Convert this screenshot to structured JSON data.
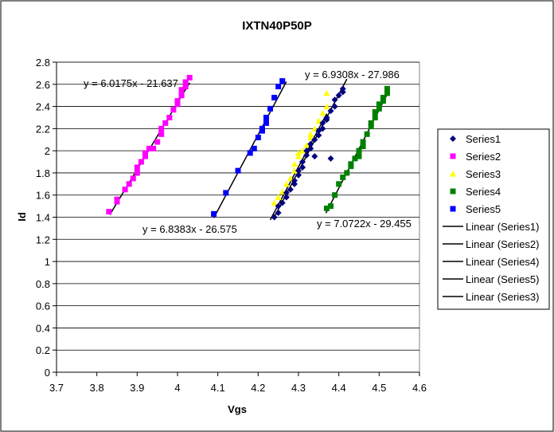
{
  "chart_data": {
    "type": "scatter",
    "title": "IXTN40P50P",
    "xlabel": "Vgs",
    "ylabel": "Id",
    "xlim": [
      3.7,
      4.6
    ],
    "ylim": [
      0,
      2.8
    ],
    "x_ticks": [
      "3.7",
      "3.8",
      "3.9",
      "4",
      "4.1",
      "4.2",
      "4.3",
      "4.4",
      "4.5",
      "4.6"
    ],
    "y_ticks": [
      "0",
      "0.2",
      "0.4",
      "0.6",
      "0.8",
      "1",
      "1.2",
      "1.4",
      "1.6",
      "1.8",
      "2",
      "2.2",
      "2.4",
      "2.6",
      "2.8"
    ],
    "grid": "horizontal",
    "legend_position": "right",
    "series": [
      {
        "name": "Series1",
        "color": "#000080",
        "marker": "diamond",
        "points": [
          [
            4.24,
            1.4
          ],
          [
            4.25,
            1.44
          ],
          [
            4.25,
            1.5
          ],
          [
            4.26,
            1.53
          ],
          [
            4.27,
            1.58
          ],
          [
            4.27,
            1.62
          ],
          [
            4.28,
            1.65
          ],
          [
            4.29,
            1.7
          ],
          [
            4.29,
            1.73
          ],
          [
            4.3,
            1.78
          ],
          [
            4.3,
            1.82
          ],
          [
            4.31,
            1.85
          ],
          [
            4.31,
            1.9
          ],
          [
            4.32,
            1.96
          ],
          [
            4.32,
            2.0
          ],
          [
            4.33,
            2.02
          ],
          [
            4.33,
            2.06
          ],
          [
            4.34,
            2.1
          ],
          [
            4.34,
            1.95
          ],
          [
            4.35,
            2.14
          ],
          [
            4.35,
            2.18
          ],
          [
            4.36,
            2.2
          ],
          [
            4.36,
            2.25
          ],
          [
            4.37,
            2.28
          ],
          [
            4.37,
            2.3
          ],
          [
            4.38,
            2.36
          ],
          [
            4.38,
            1.93
          ],
          [
            4.39,
            2.4
          ],
          [
            4.39,
            2.46
          ],
          [
            4.4,
            2.5
          ],
          [
            4.41,
            2.53
          ],
          [
            4.41,
            2.56
          ]
        ]
      },
      {
        "name": "Series2",
        "color": "#FF00FF",
        "marker": "square",
        "points": [
          [
            3.83,
            1.45
          ],
          [
            3.85,
            1.54
          ],
          [
            3.85,
            1.56
          ],
          [
            3.87,
            1.65
          ],
          [
            3.88,
            1.7
          ],
          [
            3.89,
            1.75
          ],
          [
            3.9,
            1.8
          ],
          [
            3.9,
            1.85
          ],
          [
            3.91,
            1.9
          ],
          [
            3.92,
            1.95
          ],
          [
            3.92,
            1.98
          ],
          [
            3.93,
            2.02
          ],
          [
            3.94,
            2.02
          ],
          [
            3.95,
            2.08
          ],
          [
            3.96,
            2.15
          ],
          [
            3.96,
            2.2
          ],
          [
            3.97,
            2.25
          ],
          [
            3.98,
            2.3
          ],
          [
            3.99,
            2.37
          ],
          [
            4.0,
            2.42
          ],
          [
            4.0,
            2.45
          ],
          [
            4.01,
            2.5
          ],
          [
            4.01,
            2.55
          ],
          [
            4.02,
            2.58
          ],
          [
            4.02,
            2.62
          ],
          [
            4.03,
            2.66
          ]
        ]
      },
      {
        "name": "Series3",
        "color": "#FFFF00",
        "marker": "triangle",
        "points": [
          [
            4.24,
            1.53
          ],
          [
            4.25,
            1.58
          ],
          [
            4.26,
            1.63
          ],
          [
            4.27,
            1.7
          ],
          [
            4.28,
            1.75
          ],
          [
            4.29,
            1.82
          ],
          [
            4.29,
            1.88
          ],
          [
            4.3,
            1.95
          ],
          [
            4.3,
            1.98
          ],
          [
            4.31,
            2.0
          ],
          [
            4.32,
            2.05
          ],
          [
            4.33,
            2.12
          ],
          [
            4.33,
            2.15
          ],
          [
            4.34,
            2.2
          ],
          [
            4.35,
            2.27
          ],
          [
            4.36,
            2.34
          ],
          [
            4.37,
            2.4
          ],
          [
            4.37,
            2.52
          ]
        ]
      },
      {
        "name": "Series4",
        "color": "#008000",
        "marker": "square",
        "points": [
          [
            4.37,
            1.48
          ],
          [
            4.38,
            1.5
          ],
          [
            4.39,
            1.6
          ],
          [
            4.4,
            1.7
          ],
          [
            4.41,
            1.76
          ],
          [
            4.42,
            1.8
          ],
          [
            4.43,
            1.86
          ],
          [
            4.43,
            1.88
          ],
          [
            4.44,
            1.93
          ],
          [
            4.45,
            1.95
          ],
          [
            4.45,
            2.0
          ],
          [
            4.46,
            2.04
          ],
          [
            4.46,
            2.08
          ],
          [
            4.47,
            2.15
          ],
          [
            4.48,
            2.22
          ],
          [
            4.48,
            2.25
          ],
          [
            4.49,
            2.3
          ],
          [
            4.49,
            2.35
          ],
          [
            4.5,
            2.38
          ],
          [
            4.5,
            2.42
          ],
          [
            4.51,
            2.45
          ],
          [
            4.51,
            2.48
          ],
          [
            4.52,
            2.52
          ],
          [
            4.52,
            2.56
          ]
        ]
      },
      {
        "name": "Series5",
        "color": "#0000FF",
        "marker": "square",
        "points": [
          [
            4.09,
            1.43
          ],
          [
            4.12,
            1.62
          ],
          [
            4.15,
            1.82
          ],
          [
            4.18,
            1.98
          ],
          [
            4.19,
            2.02
          ],
          [
            4.2,
            2.12
          ],
          [
            4.21,
            2.18
          ],
          [
            4.21,
            2.2
          ],
          [
            4.22,
            2.25
          ],
          [
            4.22,
            2.3
          ],
          [
            4.23,
            2.38
          ],
          [
            4.24,
            2.48
          ],
          [
            4.25,
            2.58
          ],
          [
            4.26,
            2.63
          ]
        ]
      }
    ],
    "trendlines": [
      {
        "name": "Linear (Series1)",
        "color": "#000000",
        "slope": 6.9308,
        "intercept": -27.986,
        "x_range": [
          4.239,
          4.42
        ],
        "equation": "y = 6.9308x - 27.986"
      },
      {
        "name": "Linear (Series2)",
        "color": "#000000",
        "slope": 6.0175,
        "intercept": -21.637,
        "x_range": [
          3.832,
          4.03
        ],
        "equation": "y = 6.0175x - 21.637"
      },
      {
        "name": "Linear (Series4)",
        "color": "#000000",
        "slope": 7.0722,
        "intercept": -29.455,
        "x_range": [
          4.368,
          4.525
        ],
        "equation": "y = 7.0722x - 29.455"
      },
      {
        "name": "Linear (Series5)",
        "color": "#000000",
        "slope": 6.8383,
        "intercept": -26.575,
        "x_range": [
          4.09,
          4.27
        ],
        "equation": "y = 6.8383x - 26.575"
      },
      {
        "name": "Linear (Series3)",
        "color": "#000000",
        "slope": 6.85,
        "intercept": -27.6,
        "x_range": [
          4.23,
          4.37
        ],
        "equation": ""
      }
    ]
  }
}
